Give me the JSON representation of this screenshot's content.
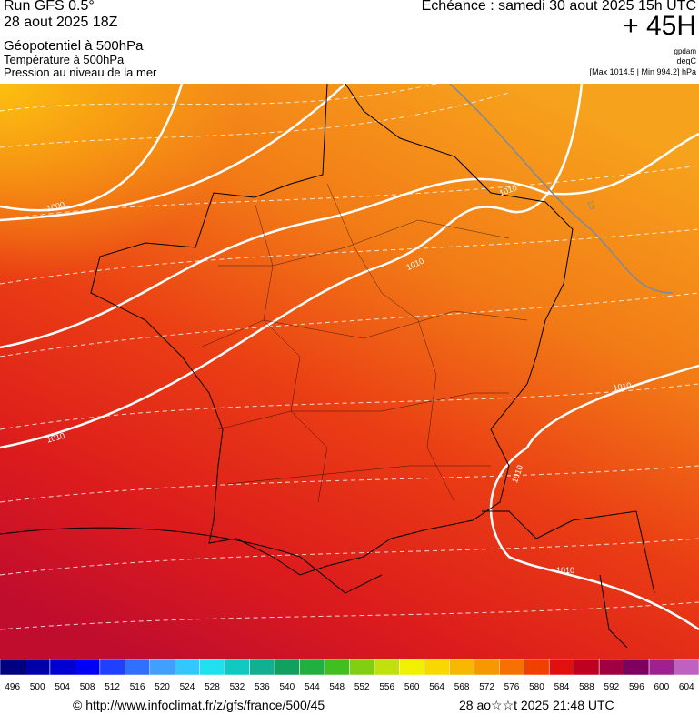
{
  "header": {
    "run": "Run GFS 0.5°",
    "date": "28 aout 2025 18Z",
    "fields": [
      "Géopotentiel à 500hPa",
      "Température à 500hPa",
      "Pression au niveau de la mer"
    ],
    "echeance": "Echéance : samedi 30 aout 2025 15h UTC",
    "lead": "+ 45H",
    "units": [
      "gpdam",
      "degC"
    ],
    "range": "[Max 1014.5 | Min 994.2] hPa"
  },
  "map": {
    "contour_labels": [
      "1000",
      "1010",
      "1010",
      "1010",
      "1010",
      "1010",
      "1010",
      "16"
    ]
  },
  "colorbar": {
    "labels": [
      496,
      500,
      504,
      508,
      512,
      516,
      520,
      524,
      528,
      532,
      536,
      540,
      544,
      548,
      552,
      556,
      560,
      564,
      568,
      572,
      576,
      580,
      584,
      588,
      592,
      596,
      600,
      604
    ]
  },
  "footer": {
    "url": "© http://www.infoclimat.fr/z/gfs/france/500/45",
    "timestamp": "28 ao☆☆t 2025 21:48 UTC"
  }
}
